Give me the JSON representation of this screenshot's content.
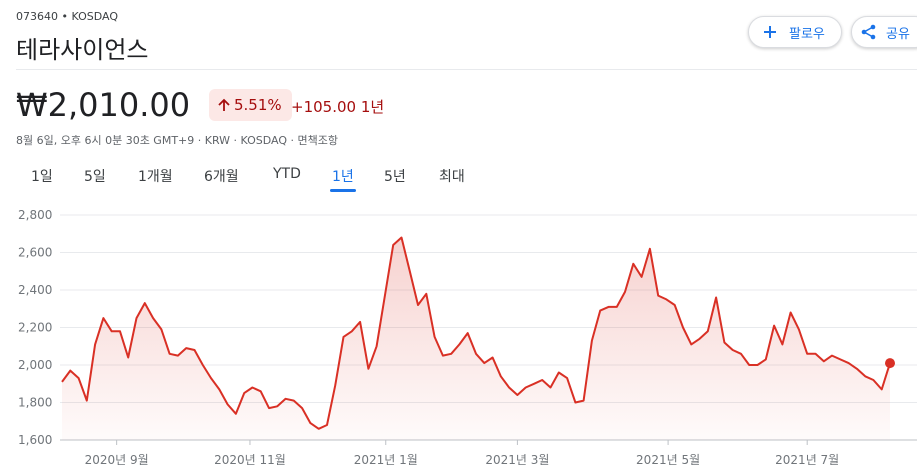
{
  "header": {
    "ticker": "073640 • KOSDAQ",
    "name": "테라사이언스",
    "follow": "팔로우",
    "share": "공유"
  },
  "quote": {
    "price": "₩2,010.00",
    "change_pct": "5.51%",
    "change_abs": "+105.00",
    "period": "1년",
    "info": "8월 6일, 오후 6시 0분 30초 GMT+9 · KRW · KOSDAQ · 면책조항"
  },
  "tabs": [
    "1일",
    "5일",
    "1개월",
    "6개월",
    "YTD",
    "1년",
    "5년",
    "최대"
  ],
  "chart_data": {
    "type": "area",
    "color": "#d93025",
    "values": [
      1910,
      1970,
      1930,
      1810,
      2110,
      2250,
      2180,
      2180,
      2040,
      2250,
      2330,
      2250,
      2190,
      2060,
      2050,
      2090,
      2080,
      2000,
      1930,
      1870,
      1790,
      1740,
      1850,
      1880,
      1860,
      1770,
      1780,
      1820,
      1810,
      1770,
      1690,
      1660,
      1680,
      1890,
      2150,
      2180,
      2230,
      1980,
      2100,
      2370,
      2640,
      2680,
      2500,
      2320,
      2380,
      2150,
      2050,
      2060,
      2110,
      2170,
      2060,
      2010,
      2040,
      1940,
      1880,
      1840,
      1880,
      1900,
      1920,
      1880,
      1960,
      1930,
      1800,
      1810,
      2130,
      2290,
      2310,
      2310,
      2390,
      2540,
      2470,
      2620,
      2370,
      2350,
      2320,
      2200,
      2110,
      2140,
      2180,
      2360,
      2120,
      2080,
      2060,
      2000,
      2000,
      2030,
      2210,
      2110,
      2280,
      2190,
      2060,
      2060,
      2020,
      2050,
      2030,
      2010,
      1980,
      1940,
      1920,
      1870,
      2010
    ],
    "xlim": [
      0,
      100
    ],
    "xticks": [
      {
        "value": 6.6,
        "label": "2020년 9월"
      },
      {
        "value": 22.7,
        "label": "2020년 11월"
      },
      {
        "value": 39.1,
        "label": "2021년 1월"
      },
      {
        "value": 55,
        "label": "2021년 3월"
      },
      {
        "value": 73.2,
        "label": "2021년 5월"
      },
      {
        "value": 90,
        "label": "2021년 7월"
      }
    ],
    "ylim": [
      1600,
      2800
    ],
    "yticks": [
      {
        "value": 1600,
        "label": "1,600"
      },
      {
        "value": 1800,
        "label": "1,800"
      },
      {
        "value": 2000,
        "label": "2,000"
      },
      {
        "value": 2200,
        "label": "2,200"
      },
      {
        "value": 2400,
        "label": "2,400"
      },
      {
        "value": 2600,
        "label": "2,600"
      },
      {
        "value": 2800,
        "label": "2,800"
      }
    ],
    "grid": true
  }
}
